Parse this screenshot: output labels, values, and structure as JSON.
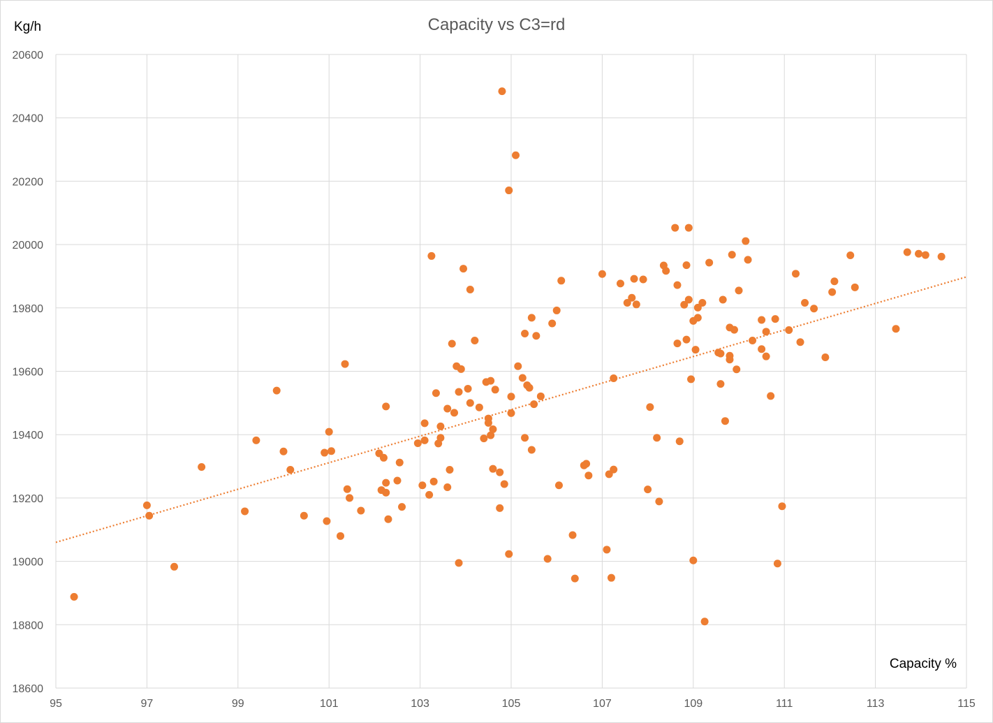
{
  "chart_data": {
    "type": "scatter",
    "title": "Capacity vs C3=rd",
    "xlabel": "Capacity %",
    "ylabel": "Kg/h",
    "xlim": [
      95,
      115
    ],
    "ylim": [
      18600,
      20600
    ],
    "xticks": [
      95,
      97,
      99,
      101,
      103,
      105,
      107,
      109,
      111,
      113,
      115
    ],
    "yticks": [
      18600,
      18800,
      19000,
      19200,
      19400,
      19600,
      19800,
      20000,
      20200,
      20400,
      20600
    ],
    "grid": true,
    "legend": "none",
    "colors": {
      "points": "#ED7D31",
      "trendline": "#ED7D31",
      "grid": "#d9d9d9"
    },
    "trendline": {
      "type": "linear",
      "style": "dotted",
      "x": [
        95,
        115
      ],
      "y": [
        19060,
        19898
      ]
    },
    "points": [
      [
        95.4,
        18888
      ],
      [
        97.0,
        19177
      ],
      [
        97.05,
        19144
      ],
      [
        97.6,
        18983
      ],
      [
        98.2,
        19298
      ],
      [
        99.15,
        19158
      ],
      [
        99.4,
        19382
      ],
      [
        99.85,
        19539
      ],
      [
        100.0,
        19347
      ],
      [
        100.15,
        19289
      ],
      [
        100.45,
        19144
      ],
      [
        100.9,
        19343
      ],
      [
        100.95,
        19127
      ],
      [
        101.0,
        19409
      ],
      [
        101.05,
        19348
      ],
      [
        101.25,
        19080
      ],
      [
        101.35,
        19623
      ],
      [
        101.4,
        19228
      ],
      [
        101.45,
        19200
      ],
      [
        101.7,
        19160
      ],
      [
        102.1,
        19341
      ],
      [
        102.15,
        19225
      ],
      [
        102.2,
        19327
      ],
      [
        102.25,
        19489
      ],
      [
        102.25,
        19217
      ],
      [
        102.25,
        19248
      ],
      [
        102.3,
        19133
      ],
      [
        102.5,
        19255
      ],
      [
        102.55,
        19312
      ],
      [
        102.6,
        19172
      ],
      [
        102.95,
        19373
      ],
      [
        103.05,
        19240
      ],
      [
        103.1,
        19382
      ],
      [
        103.1,
        19436
      ],
      [
        103.2,
        19210
      ],
      [
        103.25,
        19964
      ],
      [
        103.3,
        19252
      ],
      [
        103.35,
        19531
      ],
      [
        103.4,
        19372
      ],
      [
        103.45,
        19426
      ],
      [
        103.45,
        19390
      ],
      [
        103.6,
        19482
      ],
      [
        103.6,
        19234
      ],
      [
        103.65,
        19289
      ],
      [
        103.7,
        19687
      ],
      [
        103.75,
        19469
      ],
      [
        103.8,
        19616
      ],
      [
        103.85,
        19535
      ],
      [
        103.85,
        18995
      ],
      [
        103.9,
        19607
      ],
      [
        103.95,
        19924
      ],
      [
        104.05,
        19545
      ],
      [
        104.1,
        19500
      ],
      [
        104.1,
        19858
      ],
      [
        104.2,
        19697
      ],
      [
        104.3,
        19486
      ],
      [
        104.4,
        19388
      ],
      [
        104.45,
        19566
      ],
      [
        104.5,
        19451
      ],
      [
        104.5,
        19437
      ],
      [
        104.55,
        19570
      ],
      [
        104.55,
        19398
      ],
      [
        104.6,
        19417
      ],
      [
        104.6,
        19292
      ],
      [
        104.65,
        19542
      ],
      [
        104.75,
        19281
      ],
      [
        104.75,
        19168
      ],
      [
        104.8,
        20484
      ],
      [
        104.85,
        19244
      ],
      [
        104.95,
        20171
      ],
      [
        104.95,
        19023
      ],
      [
        105.0,
        19520
      ],
      [
        105.0,
        19468
      ],
      [
        105.1,
        20282
      ],
      [
        105.15,
        19616
      ],
      [
        105.25,
        19579
      ],
      [
        105.3,
        19390
      ],
      [
        105.3,
        19719
      ],
      [
        105.35,
        19556
      ],
      [
        105.4,
        19548
      ],
      [
        105.45,
        19352
      ],
      [
        105.45,
        19769
      ],
      [
        105.5,
        19496
      ],
      [
        105.55,
        19712
      ],
      [
        105.65,
        19521
      ],
      [
        105.8,
        19008
      ],
      [
        105.9,
        19751
      ],
      [
        106.0,
        19792
      ],
      [
        106.05,
        19240
      ],
      [
        106.1,
        19886
      ],
      [
        106.35,
        19083
      ],
      [
        106.4,
        18946
      ],
      [
        106.6,
        19303
      ],
      [
        106.65,
        19308
      ],
      [
        106.7,
        19271
      ],
      [
        107.0,
        19907
      ],
      [
        107.1,
        19037
      ],
      [
        107.15,
        19275
      ],
      [
        107.2,
        18948
      ],
      [
        107.25,
        19578
      ],
      [
        107.25,
        19290
      ],
      [
        107.4,
        19877
      ],
      [
        107.55,
        19816
      ],
      [
        107.65,
        19832
      ],
      [
        107.7,
        19892
      ],
      [
        107.75,
        19811
      ],
      [
        107.9,
        19890
      ],
      [
        108.0,
        19227
      ],
      [
        108.05,
        19487
      ],
      [
        108.2,
        19390
      ],
      [
        108.25,
        19189
      ],
      [
        108.35,
        19934
      ],
      [
        108.4,
        19917
      ],
      [
        108.6,
        20053
      ],
      [
        108.65,
        19688
      ],
      [
        108.65,
        19872
      ],
      [
        108.7,
        19379
      ],
      [
        108.8,
        19810
      ],
      [
        108.85,
        19935
      ],
      [
        108.85,
        19700
      ],
      [
        108.9,
        19826
      ],
      [
        108.9,
        20053
      ],
      [
        108.95,
        19575
      ],
      [
        109.0,
        19003
      ],
      [
        109.0,
        19759
      ],
      [
        109.05,
        19668
      ],
      [
        109.1,
        19769
      ],
      [
        109.1,
        19801
      ],
      [
        109.2,
        19816
      ],
      [
        109.25,
        18810
      ],
      [
        109.35,
        19943
      ],
      [
        109.55,
        19659
      ],
      [
        109.6,
        19656
      ],
      [
        109.6,
        19560
      ],
      [
        109.65,
        19826
      ],
      [
        109.7,
        19443
      ],
      [
        109.8,
        19738
      ],
      [
        109.8,
        19649
      ],
      [
        109.8,
        19637
      ],
      [
        109.85,
        19968
      ],
      [
        109.9,
        19731
      ],
      [
        109.95,
        19606
      ],
      [
        110.0,
        19855
      ],
      [
        110.15,
        20011
      ],
      [
        110.2,
        19952
      ],
      [
        110.3,
        19697
      ],
      [
        110.5,
        19762
      ],
      [
        110.5,
        19670
      ],
      [
        110.6,
        19647
      ],
      [
        110.6,
        19725
      ],
      [
        110.7,
        19522
      ],
      [
        110.8,
        19765
      ],
      [
        110.85,
        18993
      ],
      [
        110.95,
        19174
      ],
      [
        111.1,
        19730
      ],
      [
        111.25,
        19908
      ],
      [
        111.35,
        19692
      ],
      [
        111.45,
        19816
      ],
      [
        111.65,
        19798
      ],
      [
        111.9,
        19644
      ],
      [
        112.05,
        19850
      ],
      [
        112.1,
        19884
      ],
      [
        112.45,
        19966
      ],
      [
        112.55,
        19865
      ],
      [
        113.45,
        19734
      ],
      [
        113.7,
        19976
      ],
      [
        113.95,
        19971
      ],
      [
        114.1,
        19967
      ],
      [
        114.45,
        19962
      ]
    ]
  }
}
